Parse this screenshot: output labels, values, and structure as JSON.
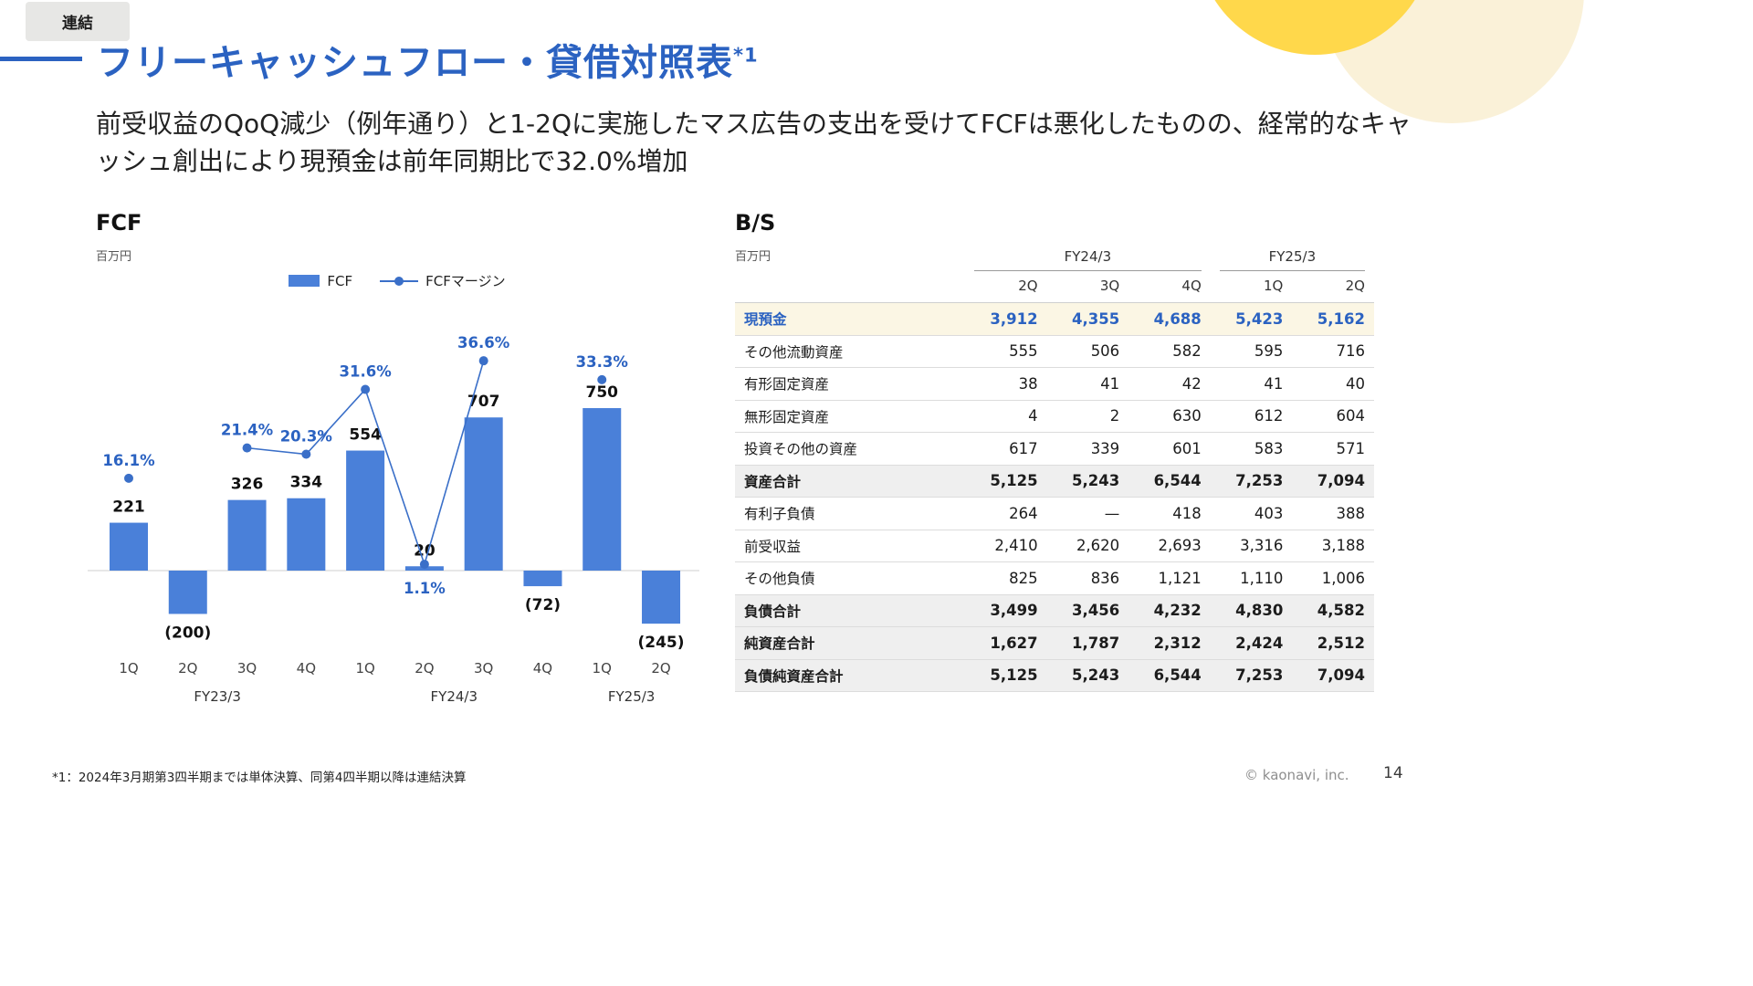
{
  "badge": "連結",
  "title": {
    "text": "フリーキャッシュフロー・貸借対照表",
    "superscript": "*1"
  },
  "subtitle": "前受収益のQoQ減少（例年通り）と1-2Qに実施したマス広告の支出を受けてFCFは悪化したものの、経常的なキャッシュ創出により現預金は前年同期比で32.0%増加",
  "fcf_section": {
    "heading": "FCF",
    "unit": "百万円"
  },
  "bs_section": {
    "heading": "B/S",
    "unit": "百万円"
  },
  "chart_data": [
    {
      "type": "bar",
      "title": "FCF",
      "unit": "百万円",
      "categories": [
        "1Q",
        "2Q",
        "3Q",
        "4Q",
        "1Q",
        "2Q",
        "3Q",
        "4Q",
        "1Q",
        "2Q"
      ],
      "group_labels": [
        {
          "label": "FY23/3",
          "span": [
            0,
            3
          ]
        },
        {
          "label": "FY24/3",
          "span": [
            4,
            7
          ]
        },
        {
          "label": "FY25/3",
          "span": [
            8,
            9
          ]
        }
      ],
      "series": [
        {
          "name": "FCF",
          "type": "bar",
          "values": [
            221,
            -200,
            326,
            334,
            554,
            20,
            707,
            -72,
            750,
            -245
          ],
          "labels": [
            "221",
            "(200)",
            "326",
            "334",
            "554",
            "20",
            "707",
            "(72)",
            "750",
            "(245)"
          ]
        },
        {
          "name": "FCFマージン",
          "type": "line",
          "values": [
            16.1,
            null,
            21.4,
            20.3,
            31.6,
            1.1,
            36.6,
            null,
            33.3,
            null
          ],
          "labels": [
            "16.1%",
            null,
            "21.4%",
            "20.3%",
            "31.6%",
            "1.1%",
            "36.6%",
            null,
            "33.3%",
            null
          ],
          "label_positions": [
            "above",
            null,
            "above",
            "above",
            "above",
            "below",
            "above",
            null,
            "above",
            null
          ],
          "connected_segments": [
            [
              2,
              3,
              4,
              5,
              6
            ]
          ]
        }
      ]
    },
    {
      "type": "table",
      "title": "B/S",
      "unit": "百万円",
      "column_groups": [
        {
          "label": "FY24/3",
          "cols": [
            "2Q",
            "3Q",
            "4Q"
          ]
        },
        {
          "label": "FY25/3",
          "cols": [
            "1Q",
            "2Q"
          ]
        }
      ],
      "rows": [
        {
          "label": "現預金",
          "values": [
            "3,912",
            "4,355",
            "4,688",
            "5,423",
            "5,162"
          ],
          "style": "highlight"
        },
        {
          "label": "その他流動資産",
          "values": [
            "555",
            "506",
            "582",
            "595",
            "716"
          ],
          "style": "normal"
        },
        {
          "label": "有形固定資産",
          "values": [
            "38",
            "41",
            "42",
            "41",
            "40"
          ],
          "style": "normal"
        },
        {
          "label": "無形固定資産",
          "values": [
            "4",
            "2",
            "630",
            "612",
            "604"
          ],
          "style": "normal"
        },
        {
          "label": "投資その他の資産",
          "values": [
            "617",
            "339",
            "601",
            "583",
            "571"
          ],
          "style": "normal"
        },
        {
          "label": "資産合計",
          "values": [
            "5,125",
            "5,243",
            "6,544",
            "7,253",
            "7,094"
          ],
          "style": "total"
        },
        {
          "label": "有利子負債",
          "values": [
            "264",
            "—",
            "418",
            "403",
            "388"
          ],
          "style": "normal"
        },
        {
          "label": "前受収益",
          "values": [
            "2,410",
            "2,620",
            "2,693",
            "3,316",
            "3,188"
          ],
          "style": "normal"
        },
        {
          "label": "その他負債",
          "values": [
            "825",
            "836",
            "1,121",
            "1,110",
            "1,006"
          ],
          "style": "normal"
        },
        {
          "label": "負債合計",
          "values": [
            "3,499",
            "3,456",
            "4,232",
            "4,830",
            "4,582"
          ],
          "style": "total"
        },
        {
          "label": "純資産合計",
          "values": [
            "1,627",
            "1,787",
            "2,312",
            "2,424",
            "2,512"
          ],
          "style": "total"
        },
        {
          "label": "負債純資産合計",
          "values": [
            "5,125",
            "5,243",
            "6,544",
            "7,253",
            "7,094"
          ],
          "style": "total"
        }
      ]
    }
  ],
  "footer": {
    "footnote": "*1：2024年3月期第3四半期までは単体決算、同第4四半期以降は連結決算",
    "copyright": "© kaonavi, inc.",
    "page_number": "14"
  },
  "colors": {
    "accent": "#2b62c1",
    "bar": "#4a80d9",
    "line": "#3a6fc8",
    "highlight_row_bg": "#fbf6e4",
    "total_row_bg": "#efefef",
    "badge_bg": "#e7e7e5",
    "deco_yellow": "#ffd84b",
    "deco_cream": "#faf1d8"
  }
}
